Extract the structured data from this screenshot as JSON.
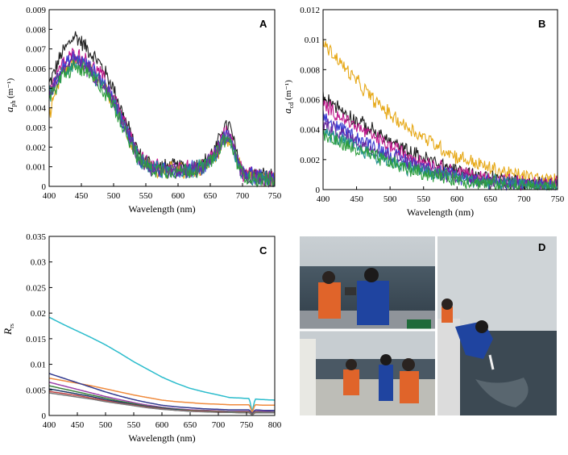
{
  "chart_data": [
    {
      "panel": "A",
      "type": "line",
      "xlabel": "Wavelength (nm)",
      "ylabel_main": "a",
      "ylabel_sub": "ph",
      "ylabel_unit": " (m⁻¹)",
      "xlim": [
        400,
        750
      ],
      "ylim": [
        0,
        0.009
      ],
      "xticks": [
        "400",
        "450",
        "500",
        "550",
        "600",
        "650",
        "700",
        "750"
      ],
      "yticks": [
        "0",
        "0.001",
        "0.002",
        "0.003",
        "0.004",
        "0.005",
        "0.006",
        "0.007",
        "0.008",
        "0.009"
      ],
      "noise": 0.0005,
      "x": [
        400,
        420,
        440,
        460,
        480,
        500,
        520,
        540,
        560,
        580,
        600,
        620,
        640,
        660,
        670,
        680,
        690,
        700,
        720,
        750
      ],
      "series": [
        {
          "color": "#222222",
          "values": [
            0.0052,
            0.0068,
            0.0077,
            0.007,
            0.0062,
            0.005,
            0.0032,
            0.0016,
            0.0011,
            0.001,
            0.001,
            0.001,
            0.0012,
            0.002,
            0.003,
            0.0031,
            0.0018,
            0.0008,
            0.0006,
            0.0005
          ]
        },
        {
          "color": "#e6a817",
          "values": [
            0.0035,
            0.0058,
            0.0064,
            0.006,
            0.0054,
            0.0044,
            0.0028,
            0.0014,
            0.0009,
            0.0008,
            0.0008,
            0.0008,
            0.001,
            0.0016,
            0.0024,
            0.0025,
            0.0014,
            0.0006,
            0.0004,
            0.0003
          ]
        },
        {
          "color": "#c0188c",
          "values": [
            0.005,
            0.0062,
            0.0068,
            0.0063,
            0.0057,
            0.0046,
            0.003,
            0.0015,
            0.001,
            0.0009,
            0.0009,
            0.0009,
            0.0011,
            0.0018,
            0.0026,
            0.0027,
            0.0016,
            0.0007,
            0.0005,
            0.0004
          ]
        },
        {
          "color": "#3a3ad0",
          "values": [
            0.0048,
            0.006,
            0.0066,
            0.0061,
            0.0055,
            0.0044,
            0.0029,
            0.0014,
            0.0009,
            0.0008,
            0.0008,
            0.0009,
            0.001,
            0.0017,
            0.0025,
            0.0026,
            0.0015,
            0.0007,
            0.0005,
            0.0004
          ]
        },
        {
          "color": "#1f8f8f",
          "values": [
            0.0046,
            0.0058,
            0.0063,
            0.0059,
            0.0053,
            0.0043,
            0.0028,
            0.0013,
            0.0009,
            0.0008,
            0.0008,
            0.0008,
            0.001,
            0.0016,
            0.0024,
            0.0025,
            0.0014,
            0.0006,
            0.0004,
            0.0003
          ]
        },
        {
          "color": "#6a2ca0",
          "values": [
            0.0047,
            0.0059,
            0.0064,
            0.006,
            0.0054,
            0.0043,
            0.0028,
            0.0014,
            0.0009,
            0.0008,
            0.0008,
            0.0008,
            0.001,
            0.0017,
            0.0024,
            0.0025,
            0.0015,
            0.0006,
            0.0004,
            0.0003
          ]
        },
        {
          "color": "#2e9e3e",
          "values": [
            0.0044,
            0.0056,
            0.0061,
            0.0057,
            0.0051,
            0.0041,
            0.0027,
            0.0013,
            0.0009,
            0.0008,
            0.0008,
            0.0008,
            0.001,
            0.0016,
            0.0023,
            0.0024,
            0.0014,
            0.0006,
            0.0004,
            0.0003
          ]
        }
      ]
    },
    {
      "panel": "B",
      "type": "line",
      "xlabel": "Wavelength (nm)",
      "ylabel_main": "a",
      "ylabel_sub": "cd",
      "ylabel_unit": " (m⁻¹)",
      "xlim": [
        400,
        750
      ],
      "ylim": [
        0,
        0.012
      ],
      "xticks": [
        "400",
        "450",
        "500",
        "550",
        "600",
        "650",
        "700",
        "750"
      ],
      "yticks": [
        "0",
        "0.002",
        "0.004",
        "0.006",
        "0.008",
        "0.01",
        "0.012"
      ],
      "noise": 0.0006,
      "x": [
        400,
        425,
        450,
        475,
        500,
        525,
        550,
        575,
        600,
        625,
        650,
        675,
        700,
        725,
        750
      ],
      "series": [
        {
          "color": "#e6a817",
          "values": [
            0.0098,
            0.0085,
            0.0072,
            0.006,
            0.005,
            0.0042,
            0.0035,
            0.0028,
            0.0022,
            0.0018,
            0.0014,
            0.0011,
            0.0009,
            0.0007,
            0.0005
          ]
        },
        {
          "color": "#222222",
          "values": [
            0.0063,
            0.0054,
            0.0046,
            0.0039,
            0.0032,
            0.0026,
            0.0021,
            0.0017,
            0.0013,
            0.001,
            0.0008,
            0.0006,
            0.0005,
            0.0004,
            0.0003
          ]
        },
        {
          "color": "#c0188c",
          "values": [
            0.0057,
            0.0049,
            0.0042,
            0.0035,
            0.0029,
            0.0024,
            0.0019,
            0.0015,
            0.0012,
            0.0009,
            0.0007,
            0.0006,
            0.0004,
            0.0003,
            0.0003
          ]
        },
        {
          "color": "#3a3ad0",
          "values": [
            0.0048,
            0.0041,
            0.0035,
            0.0029,
            0.0024,
            0.0019,
            0.0015,
            0.0012,
            0.0009,
            0.0007,
            0.0006,
            0.0004,
            0.0003,
            0.0003,
            0.0002
          ]
        },
        {
          "color": "#6a2ca0",
          "values": [
            0.0044,
            0.0038,
            0.0032,
            0.0027,
            0.0022,
            0.0018,
            0.0014,
            0.0011,
            0.0009,
            0.0007,
            0.0005,
            0.0004,
            0.0003,
            0.0002,
            0.0002
          ]
        },
        {
          "color": "#1f8f8f",
          "values": [
            0.0038,
            0.0033,
            0.0028,
            0.0023,
            0.0019,
            0.0015,
            0.0012,
            0.001,
            0.0008,
            0.0006,
            0.0005,
            0.0004,
            0.0003,
            0.0002,
            0.0002
          ]
        },
        {
          "color": "#2e9e3e",
          "values": [
            0.0036,
            0.0031,
            0.0026,
            0.0022,
            0.0018,
            0.0014,
            0.0011,
            0.0009,
            0.0007,
            0.0005,
            0.0004,
            0.0003,
            0.0002,
            0.0002,
            0.0001
          ]
        }
      ]
    },
    {
      "panel": "C",
      "type": "line",
      "xlabel": "Wavelength (nm)",
      "ylabel_main": "R",
      "ylabel_sub": "rs",
      "ylabel_unit": "",
      "xlim": [
        400,
        800
      ],
      "ylim": [
        0,
        0.035
      ],
      "xticks": [
        "400",
        "450",
        "500",
        "550",
        "600",
        "650",
        "700",
        "750",
        "800"
      ],
      "yticks": [
        "0",
        "0.005",
        "0.01",
        "0.015",
        "0.02",
        "0.025",
        "0.03",
        "0.035"
      ],
      "noise": 0,
      "x": [
        400,
        425,
        450,
        475,
        500,
        525,
        550,
        575,
        600,
        625,
        650,
        675,
        700,
        720,
        740,
        755,
        760,
        765,
        780,
        800
      ],
      "series": [
        {
          "color": "#2bbccc",
          "values": [
            0.0192,
            0.0178,
            0.0165,
            0.0152,
            0.0138,
            0.0122,
            0.0105,
            0.009,
            0.0075,
            0.0063,
            0.0053,
            0.0046,
            0.004,
            0.0035,
            0.0034,
            0.0033,
            0.0007,
            0.0032,
            0.0031,
            0.003
          ]
        },
        {
          "color": "#f08a3c",
          "values": [
            0.0073,
            0.0068,
            0.0063,
            0.0058,
            0.0052,
            0.0046,
            0.004,
            0.0035,
            0.003,
            0.0027,
            0.0025,
            0.0023,
            0.0022,
            0.0021,
            0.0021,
            0.0021,
            0.0006,
            0.0021,
            0.002,
            0.002
          ]
        },
        {
          "color": "#333a8f",
          "values": [
            0.0082,
            0.0073,
            0.0064,
            0.0055,
            0.0046,
            0.0038,
            0.0031,
            0.0025,
            0.002,
            0.0017,
            0.0015,
            0.0013,
            0.0012,
            0.0011,
            0.0011,
            0.0011,
            0.0003,
            0.0011,
            0.001,
            0.001
          ]
        },
        {
          "color": "#9c3fa8",
          "values": [
            0.0065,
            0.0058,
            0.0051,
            0.0044,
            0.0037,
            0.0031,
            0.0025,
            0.002,
            0.0016,
            0.0013,
            0.0011,
            0.001,
            0.0009,
            0.0008,
            0.0008,
            0.0008,
            0.0002,
            0.0008,
            0.0008,
            0.0007
          ]
        },
        {
          "color": "#3a7f3a",
          "values": [
            0.0058,
            0.0052,
            0.0046,
            0.004,
            0.0034,
            0.0028,
            0.0023,
            0.0018,
            0.0015,
            0.0012,
            0.001,
            0.0009,
            0.0008,
            0.0007,
            0.0007,
            0.0007,
            0.0002,
            0.0007,
            0.0006,
            0.0006
          ]
        },
        {
          "color": "#1f3b6b",
          "values": [
            0.0052,
            0.0047,
            0.0042,
            0.0037,
            0.0031,
            0.0026,
            0.0021,
            0.0017,
            0.0014,
            0.0011,
            0.0009,
            0.0008,
            0.0007,
            0.0006,
            0.0006,
            0.0006,
            0.0001,
            0.0006,
            0.0005,
            0.0005
          ]
        },
        {
          "color": "#c04848",
          "values": [
            0.0047,
            0.0043,
            0.0039,
            0.0034,
            0.0029,
            0.0024,
            0.002,
            0.0016,
            0.0013,
            0.001,
            0.0009,
            0.0008,
            0.0007,
            0.0006,
            0.0006,
            0.0006,
            0.0001,
            0.0006,
            0.0005,
            0.0005
          ]
        },
        {
          "color": "#7a7a7a",
          "values": [
            0.0044,
            0.004,
            0.0036,
            0.0032,
            0.0027,
            0.0023,
            0.0019,
            0.0015,
            0.0012,
            0.001,
            0.0008,
            0.0007,
            0.0006,
            0.0006,
            0.0005,
            0.0005,
            0.0001,
            0.0005,
            0.0005,
            0.0005
          ]
        }
      ]
    }
  ],
  "photo_panel": {
    "label": "D"
  }
}
